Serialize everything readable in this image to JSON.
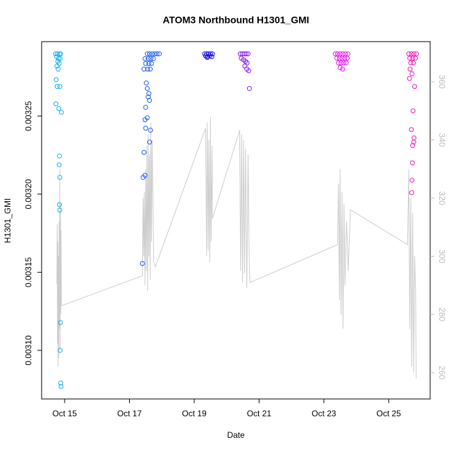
{
  "chart_data": {
    "type": "scatter",
    "title": "ATOM3 Northbound H1301_GMI",
    "x_label": "Date",
    "y_label": "H1301_GMI",
    "xlim": [
      14.29,
      26.28
    ],
    "xticks": [
      {
        "value": 15,
        "label": "Oct 15"
      },
      {
        "value": 17,
        "label": "Oct 17"
      },
      {
        "value": 19,
        "label": "Oct 19"
      },
      {
        "value": 21,
        "label": "Oct 21"
      },
      {
        "value": 23,
        "label": "Oct 23"
      },
      {
        "value": 25,
        "label": "Oct 25"
      }
    ],
    "ylim": [
      0.0030689,
      0.0032976
    ],
    "yticks": [
      {
        "value": 0.0031,
        "label": "0.00310"
      },
      {
        "value": 0.00315,
        "label": "0.00315"
      },
      {
        "value": 0.0032,
        "label": "0.00320"
      },
      {
        "value": 0.00325,
        "label": "0.00325"
      }
    ],
    "y2lim": [
      250.95,
      373.8
    ],
    "y2ticks": [
      260,
      280,
      300,
      320,
      340,
      360
    ],
    "y2_color": "#bbbbbb",
    "series": [
      {
        "style": "points",
        "color": "#18b0f0",
        "x": [
          14.72,
          14.78,
          14.84,
          14.88,
          14.75,
          14.81,
          14.86,
          14.79,
          14.83,
          14.76,
          14.8,
          14.74,
          14.77,
          14.85,
          14.73,
          14.9,
          14.82,
          14.84,
          14.83,
          14.85,
          14.84,
          14.85,
          14.87,
          14.86,
          14.88,
          14.89
        ],
        "values": [
          0.0032898,
          0.0032898,
          0.0032898,
          0.0032898,
          0.003288,
          0.0032867,
          0.0032867,
          0.003285,
          0.0032836,
          0.003282,
          0.00328,
          0.0032733,
          0.0032689,
          0.0032689,
          0.0032578,
          0.0032524,
          0.0032547,
          0.0032244,
          0.0032187,
          0.0032107,
          0.0031933,
          0.0031898,
          0.0031178,
          0.0031,
          0.0030791,
          0.0030769
        ]
      },
      {
        "style": "points",
        "color": "#1f5cf0",
        "x": [
          17.55,
          17.62,
          17.7,
          17.78,
          17.85,
          17.92,
          17.48,
          17.58,
          17.66,
          17.74,
          17.5,
          17.6,
          17.68,
          17.45,
          17.56,
          17.64,
          17.52,
          17.55,
          17.6,
          17.58,
          17.62,
          17.5,
          17.55,
          17.48,
          17.5,
          17.65,
          17.62,
          17.45,
          17.48,
          17.42,
          17.4
        ],
        "values": [
          0.0032898,
          0.0032898,
          0.0032898,
          0.0032898,
          0.0032898,
          0.0032898,
          0.0032867,
          0.0032867,
          0.0032867,
          0.0032867,
          0.0032836,
          0.0032836,
          0.0032836,
          0.00328,
          0.00328,
          0.00328,
          0.0032711,
          0.0032676,
          0.0032644,
          0.0032622,
          0.00326,
          0.0032556,
          0.0032489,
          0.0032476,
          0.0032422,
          0.0032409,
          0.0032333,
          0.0032267,
          0.003212,
          0.0032107,
          0.0031556
        ]
      },
      {
        "style": "points",
        "color": "#1a0cf0",
        "x": [
          19.32,
          19.38,
          19.44,
          19.5,
          19.56,
          19.35,
          19.42,
          19.48,
          19.54,
          19.4
        ],
        "values": [
          0.0032898,
          0.0032898,
          0.0032898,
          0.0032898,
          0.0032898,
          0.0032885,
          0.003288,
          0.0032885,
          0.003288,
          0.0032875
        ]
      },
      {
        "style": "points",
        "color": "#8a18f0",
        "x": [
          20.42,
          20.48,
          20.54,
          20.6,
          20.66,
          20.45,
          20.52,
          20.58,
          20.63,
          20.56,
          20.62,
          20.68,
          20.7
        ],
        "values": [
          0.0032898,
          0.0032898,
          0.0032898,
          0.0032898,
          0.0032898,
          0.003287,
          0.003286,
          0.003285,
          0.003284,
          0.003282,
          0.00328,
          0.003279,
          0.0032676
        ]
      },
      {
        "style": "points",
        "color": "#e81af0",
        "x": [
          23.35,
          23.42,
          23.5,
          23.58,
          23.66,
          23.74,
          23.4,
          23.48,
          23.56,
          23.64,
          23.72,
          23.45,
          23.53,
          23.61,
          23.69,
          23.5,
          23.58
        ],
        "values": [
          0.0032898,
          0.0032898,
          0.0032898,
          0.0032898,
          0.0032898,
          0.0032898,
          0.003287,
          0.003287,
          0.003287,
          0.003287,
          0.003287,
          0.003284,
          0.003284,
          0.003284,
          0.003284,
          0.003281,
          0.00328
        ]
      },
      {
        "style": "points",
        "color": "#f018b8",
        "x": [
          25.62,
          25.7,
          25.78,
          25.86,
          25.65,
          25.74,
          25.82,
          25.68,
          25.76,
          25.66,
          25.72,
          25.64,
          25.8,
          25.75,
          25.7,
          25.78,
          25.77,
          25.74,
          25.73,
          25.72,
          25.71
        ],
        "values": [
          0.0032898,
          0.0032898,
          0.0032898,
          0.0032898,
          0.003287,
          0.003287,
          0.003287,
          0.003284,
          0.003284,
          0.00328,
          0.003277,
          0.003274,
          0.0032689,
          0.0032533,
          0.0032413,
          0.003236,
          0.0032333,
          0.0032311,
          0.00322,
          0.0032089,
          0.0032009
        ]
      },
      {
        "style": "line",
        "axis": "y2",
        "color": "#cccccc",
        "x": [
          14.76,
          14.77,
          14.78,
          14.79,
          14.8,
          14.81,
          14.82,
          14.83,
          14.84,
          14.85,
          14.86,
          14.87,
          14.88,
          14.89,
          14.9,
          17.4,
          17.42,
          17.44,
          17.46,
          17.48,
          17.5,
          17.52,
          17.54,
          17.56,
          17.58,
          17.6,
          17.62,
          17.64,
          17.66,
          17.68,
          17.7,
          17.75,
          17.8,
          19.35,
          19.38,
          19.4,
          19.43,
          19.45,
          19.48,
          19.5,
          19.52,
          19.55,
          19.56,
          20.4,
          20.43,
          20.46,
          20.49,
          20.52,
          20.55,
          20.58,
          20.62,
          20.66,
          20.7,
          20.72,
          23.42,
          23.45,
          23.48,
          23.5,
          23.53,
          23.56,
          23.59,
          23.62,
          23.65,
          23.7,
          23.75,
          23.82,
          25.58,
          25.62,
          25.65,
          25.68,
          25.71,
          25.74,
          25.77,
          25.8,
          25.83,
          25.85
        ],
        "values": [
          290.5,
          311,
          270,
          305,
          262,
          300,
          265,
          312,
          275,
          330,
          268,
          318,
          280,
          309,
          283,
          293.3,
          320,
          300,
          322,
          290,
          330,
          295,
          338,
          288,
          342,
          300,
          335,
          292,
          346,
          305,
          340,
          298,
          296.4,
          344,
          300,
          346,
          302,
          340,
          298,
          348,
          305,
          338,
          313,
          343.3,
          295,
          342,
          291,
          340,
          294,
          337,
          289,
          335,
          295,
          291,
          304,
          325,
          285,
          330,
          280,
          322,
          275,
          318,
          290,
          312,
          295,
          316,
          304,
          330,
          275,
          320,
          262,
          315,
          260,
          300,
          288,
          258
        ]
      }
    ]
  }
}
